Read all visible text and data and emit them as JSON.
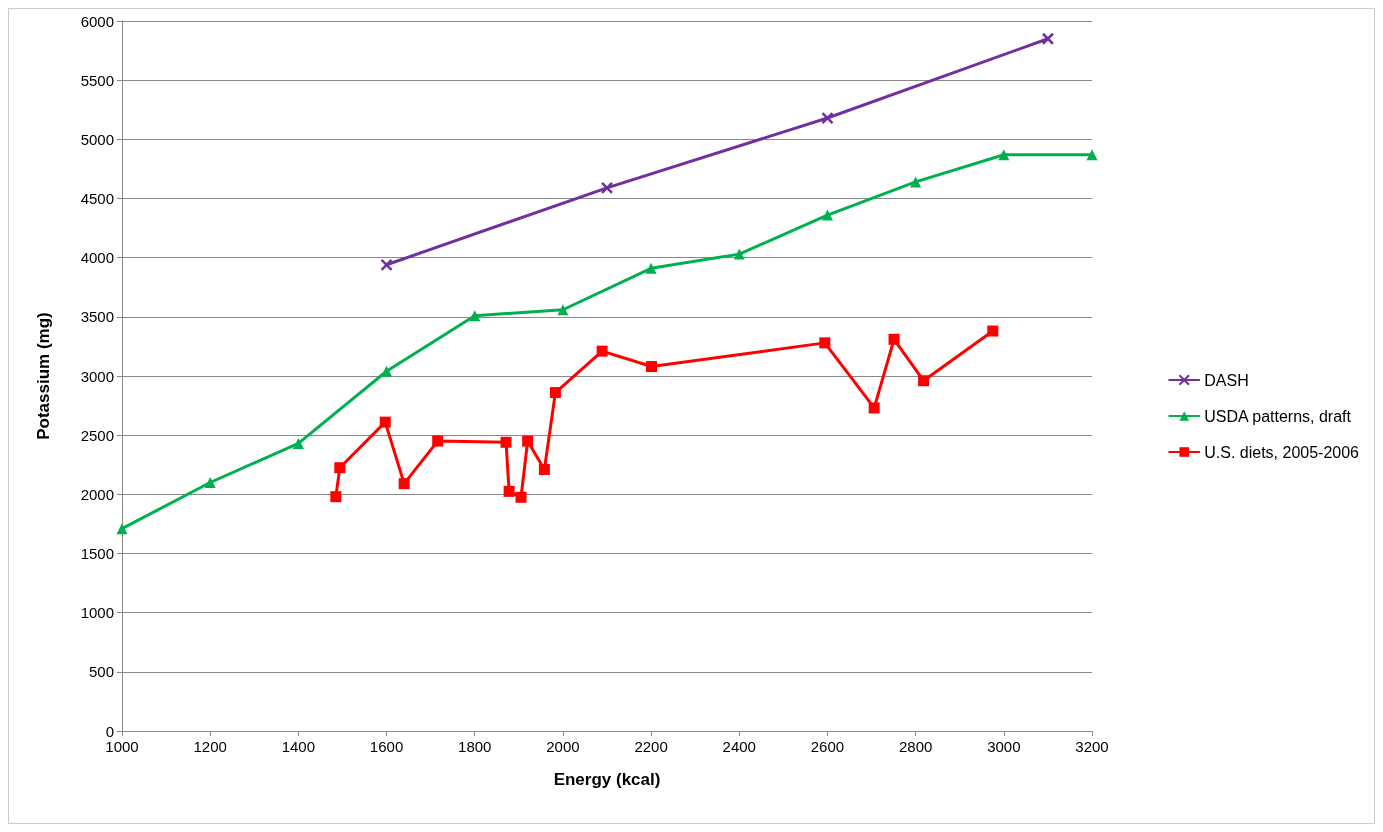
{
  "chart_data": {
    "type": "line",
    "xlabel": "Energy (kcal)",
    "ylabel": "Potassium (mg)",
    "xlim": [
      1000,
      3200
    ],
    "xticks": [
      1000,
      1200,
      1400,
      1600,
      1800,
      2000,
      2200,
      2400,
      2600,
      2800,
      3000,
      3200
    ],
    "ylim": [
      0,
      6000
    ],
    "yticks": [
      0,
      500,
      1000,
      1500,
      2000,
      2500,
      3000,
      3500,
      4000,
      4500,
      5000,
      5500,
      6000
    ],
    "grid": "y",
    "legend": "right",
    "line_style": "solid",
    "series": [
      {
        "name": "DASH",
        "color": "#7030a0",
        "marker": "cross",
        "x": [
          1600,
          2100,
          2600,
          3100
        ],
        "values": [
          3940,
          4590,
          5180,
          5850
        ]
      },
      {
        "name": "USDA patterns, draft",
        "color": "#00b050",
        "marker": "triangle",
        "x": [
          1000,
          1200,
          1400,
          1600,
          1800,
          2000,
          2200,
          2400,
          2600,
          2800,
          3000,
          3200
        ],
        "values": [
          1710,
          2100,
          2430,
          3040,
          3510,
          3560,
          3910,
          4030,
          4360,
          4640,
          4870,
          4870
        ]
      },
      {
        "name": "U.S. diets, 2005-2006",
        "color": "#ff0000",
        "marker": "square",
        "x": [
          1485,
          1494,
          1597,
          1640,
          1716,
          1871,
          1878,
          1905,
          1920,
          1958,
          1983,
          2089,
          2201,
          2594,
          2706,
          2751,
          2818,
          2975
        ],
        "values": [
          1980,
          2225,
          2610,
          2090,
          2450,
          2440,
          2025,
          1975,
          2450,
          2210,
          2860,
          3210,
          3080,
          3280,
          2730,
          3310,
          2960,
          3380
        ]
      }
    ]
  }
}
